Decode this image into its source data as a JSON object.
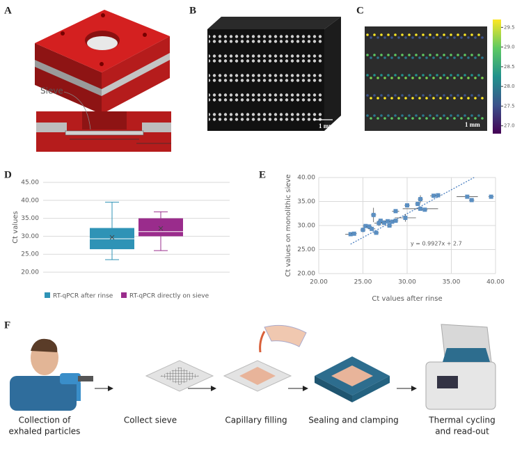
{
  "panels": {
    "a": {
      "label": "A",
      "annotation": "Sieve"
    },
    "b": {
      "label": "B",
      "scale_bar": "1 mm"
    },
    "c": {
      "label": "C",
      "scale_bar": "1 mm",
      "colorbar_lim": [
        26.8,
        29.7
      ],
      "colorbar_ticks": [
        29.5,
        {
          "value": 29,
          "label": "29.0"
        },
        28.5,
        {
          "value": 28,
          "label": "28.0"
        },
        27.5,
        {
          "value": 27,
          "label": "27.0"
        }
      ]
    },
    "d": {
      "label": "D"
    },
    "e": {
      "label": "E"
    },
    "f": {
      "label": "F",
      "steps": [
        [
          "Collection of",
          "exhaled particles"
        ],
        [
          "Collect  sieve"
        ],
        [
          "Capillary filling"
        ],
        [
          "Sealing and clamping"
        ],
        [
          "Thermal cycling",
          "and read-out"
        ]
      ]
    }
  },
  "chart_data": [
    {
      "type": "box",
      "y_label": "Ct values",
      "ylim": [
        20,
        45
      ],
      "yticks": [
        {
          "value": 20,
          "label": "20.00"
        },
        {
          "value": 25,
          "label": "25.00"
        },
        {
          "value": 30,
          "label": "30.00"
        },
        {
          "value": 35,
          "label": "35.00"
        },
        {
          "value": 40,
          "label": "40.00"
        },
        {
          "value": 45,
          "label": "45.00"
        }
      ],
      "grid": true,
      "series": [
        {
          "name": "RT-qPCR after rinse",
          "color": "#2f93b6",
          "min": 23.5,
          "q1": 26.4,
          "median": 29.3,
          "q3": 32.3,
          "max": 39.5,
          "mean": 29.7
        },
        {
          "name": "RT-qPCR directly on sieve",
          "color": "#9a2c8c",
          "min": 26,
          "q1": 30,
          "median": 31.3,
          "q3": 35,
          "max": 36.8,
          "mean": 32.2
        }
      ]
    },
    {
      "type": "scatter",
      "x_label": "Ct values after rinse",
      "y_label": "Ct values on monolithic sieve",
      "color": "#5b8fc2",
      "xlim": [
        20,
        40
      ],
      "ylim": [
        20,
        40
      ],
      "xticks": [
        {
          "value": 20,
          "label": "20.00"
        },
        {
          "value": 25,
          "label": "25.00"
        },
        {
          "value": 30,
          "label": "30.00"
        },
        {
          "value": 35,
          "label": "35.00"
        },
        {
          "value": 40,
          "label": "40.00"
        }
      ],
      "yticks": [
        {
          "value": 20,
          "label": "20.00"
        },
        {
          "value": 25,
          "label": "25.00"
        },
        {
          "value": 30,
          "label": "30.00"
        },
        {
          "value": 35,
          "label": "35.00"
        },
        {
          "value": 40,
          "label": "40.00"
        }
      ],
      "grid": true,
      "x": [
        23.6,
        24.0,
        25.0,
        25.3,
        25.7,
        26.0,
        26.2,
        26.5,
        26.8,
        27.0,
        27.4,
        27.8,
        28.0,
        28.3,
        28.7,
        28.7,
        29.8,
        30.0,
        31.2,
        31.5,
        31.5,
        32.0,
        33.0,
        33.5,
        36.8,
        37.3,
        39.5
      ],
      "values": [
        28.2,
        28.3,
        29.1,
        29.9,
        29.8,
        29.3,
        32.2,
        28.5,
        30.5,
        31.0,
        30.6,
        30.9,
        30.0,
        30.8,
        33.0,
        31.0,
        31.6,
        34.2,
        34.5,
        35.5,
        33.5,
        33.3,
        36.2,
        36.3,
        36.0,
        35.3,
        36.0
      ],
      "x_err": [
        0.6,
        0.3,
        0.3,
        0.3,
        0.3,
        0.4,
        0.3,
        0.3,
        0.5,
        0.3,
        0.3,
        0.3,
        0.3,
        0.3,
        0.4,
        0.3,
        1.2,
        0.3,
        0.3,
        0.3,
        2.0,
        0.3,
        0.4,
        0.3,
        1.2,
        0.3,
        0.3
      ],
      "y_err": [
        0.3,
        0.3,
        0.5,
        0.3,
        0.3,
        0.4,
        1.5,
        0.3,
        0.6,
        0.3,
        0.5,
        0.3,
        0.3,
        0.3,
        0.3,
        0.3,
        0.8,
        0.3,
        0.4,
        0.8,
        0.3,
        0.3,
        0.3,
        0.3,
        0.3,
        0.3,
        0.3
      ],
      "trendline": {
        "slope": 0.9927,
        "intercept": 2.7,
        "label": "y = 0.9927x + 2.7"
      }
    }
  ]
}
